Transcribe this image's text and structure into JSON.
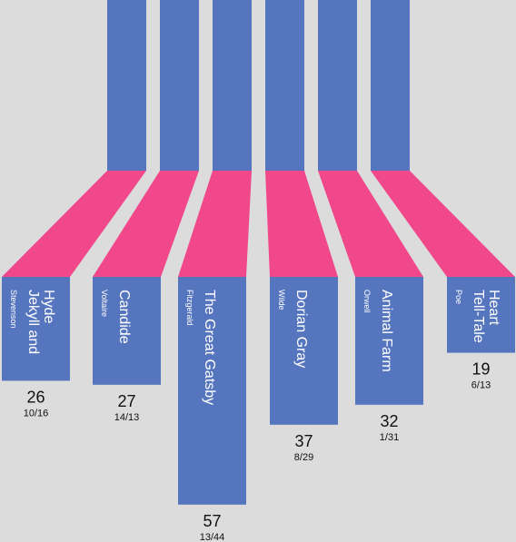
{
  "colors": {
    "bar": "#5675bf",
    "ribbon": "#f0488a",
    "background": "#dcdcdc",
    "text": "#111111",
    "bar_text": "#ffffff"
  },
  "chart_data": {
    "type": "bar",
    "categories": [
      "Jekyll and Hyde",
      "Candide",
      "The Great Gatsby",
      "Dorian Gray",
      "Animal Farm",
      "Tell-Tale Heart"
    ],
    "title_lines": [
      [
        "Jekyll and",
        "Hyde"
      ],
      [
        "Candide"
      ],
      [
        "The Great Gatsby"
      ],
      [
        "Dorian Gray"
      ],
      [
        "Animal Farm"
      ],
      [
        "Tell-Tale",
        "Heart"
      ]
    ],
    "authors": [
      "Stevenson",
      "Voltaire",
      "Fitzgerald",
      "Wilde",
      "Orwell",
      "Poe"
    ],
    "values": [
      26,
      27,
      57,
      37,
      32,
      19
    ],
    "sublabels": [
      "10/16",
      "14/13",
      "13/44",
      "8/29",
      "1/31",
      "6/13"
    ],
    "title": "",
    "xlabel": "",
    "ylabel": ""
  }
}
